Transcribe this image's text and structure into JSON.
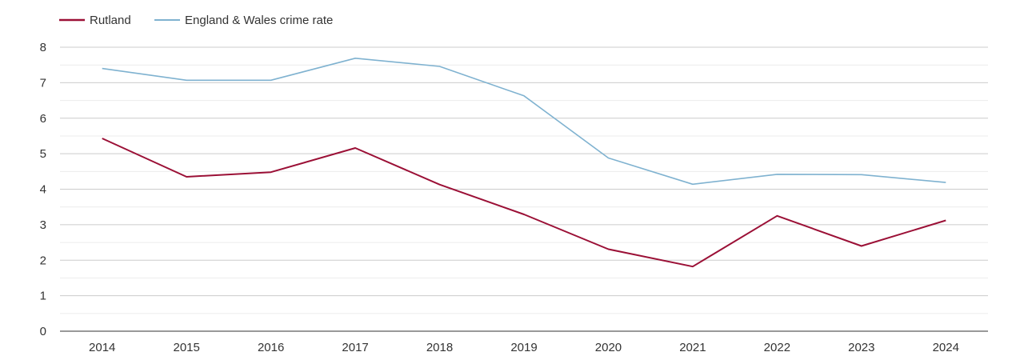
{
  "chart_data": {
    "type": "line",
    "title": "",
    "xlabel": "",
    "ylabel": "",
    "x": [
      "2014",
      "2015",
      "2016",
      "2017",
      "2018",
      "2019",
      "2020",
      "2021",
      "2022",
      "2023",
      "2024"
    ],
    "ylim": [
      0,
      8
    ],
    "yticks": [
      "0",
      "1",
      "2",
      "3",
      "4",
      "5",
      "6",
      "7",
      "8"
    ],
    "grid": true,
    "legend_position": "top-left",
    "series": [
      {
        "name": "Rutland",
        "color": "#9b1036",
        "values": [
          5.43,
          4.35,
          4.48,
          5.16,
          4.13,
          3.29,
          2.31,
          1.82,
          3.25,
          2.4,
          3.12
        ]
      },
      {
        "name": "England & Wales crime rate",
        "color": "#7fb2d0",
        "values": [
          7.4,
          7.07,
          7.07,
          7.69,
          7.46,
          6.63,
          4.88,
          4.14,
          4.42,
          4.41,
          4.19
        ]
      }
    ]
  }
}
